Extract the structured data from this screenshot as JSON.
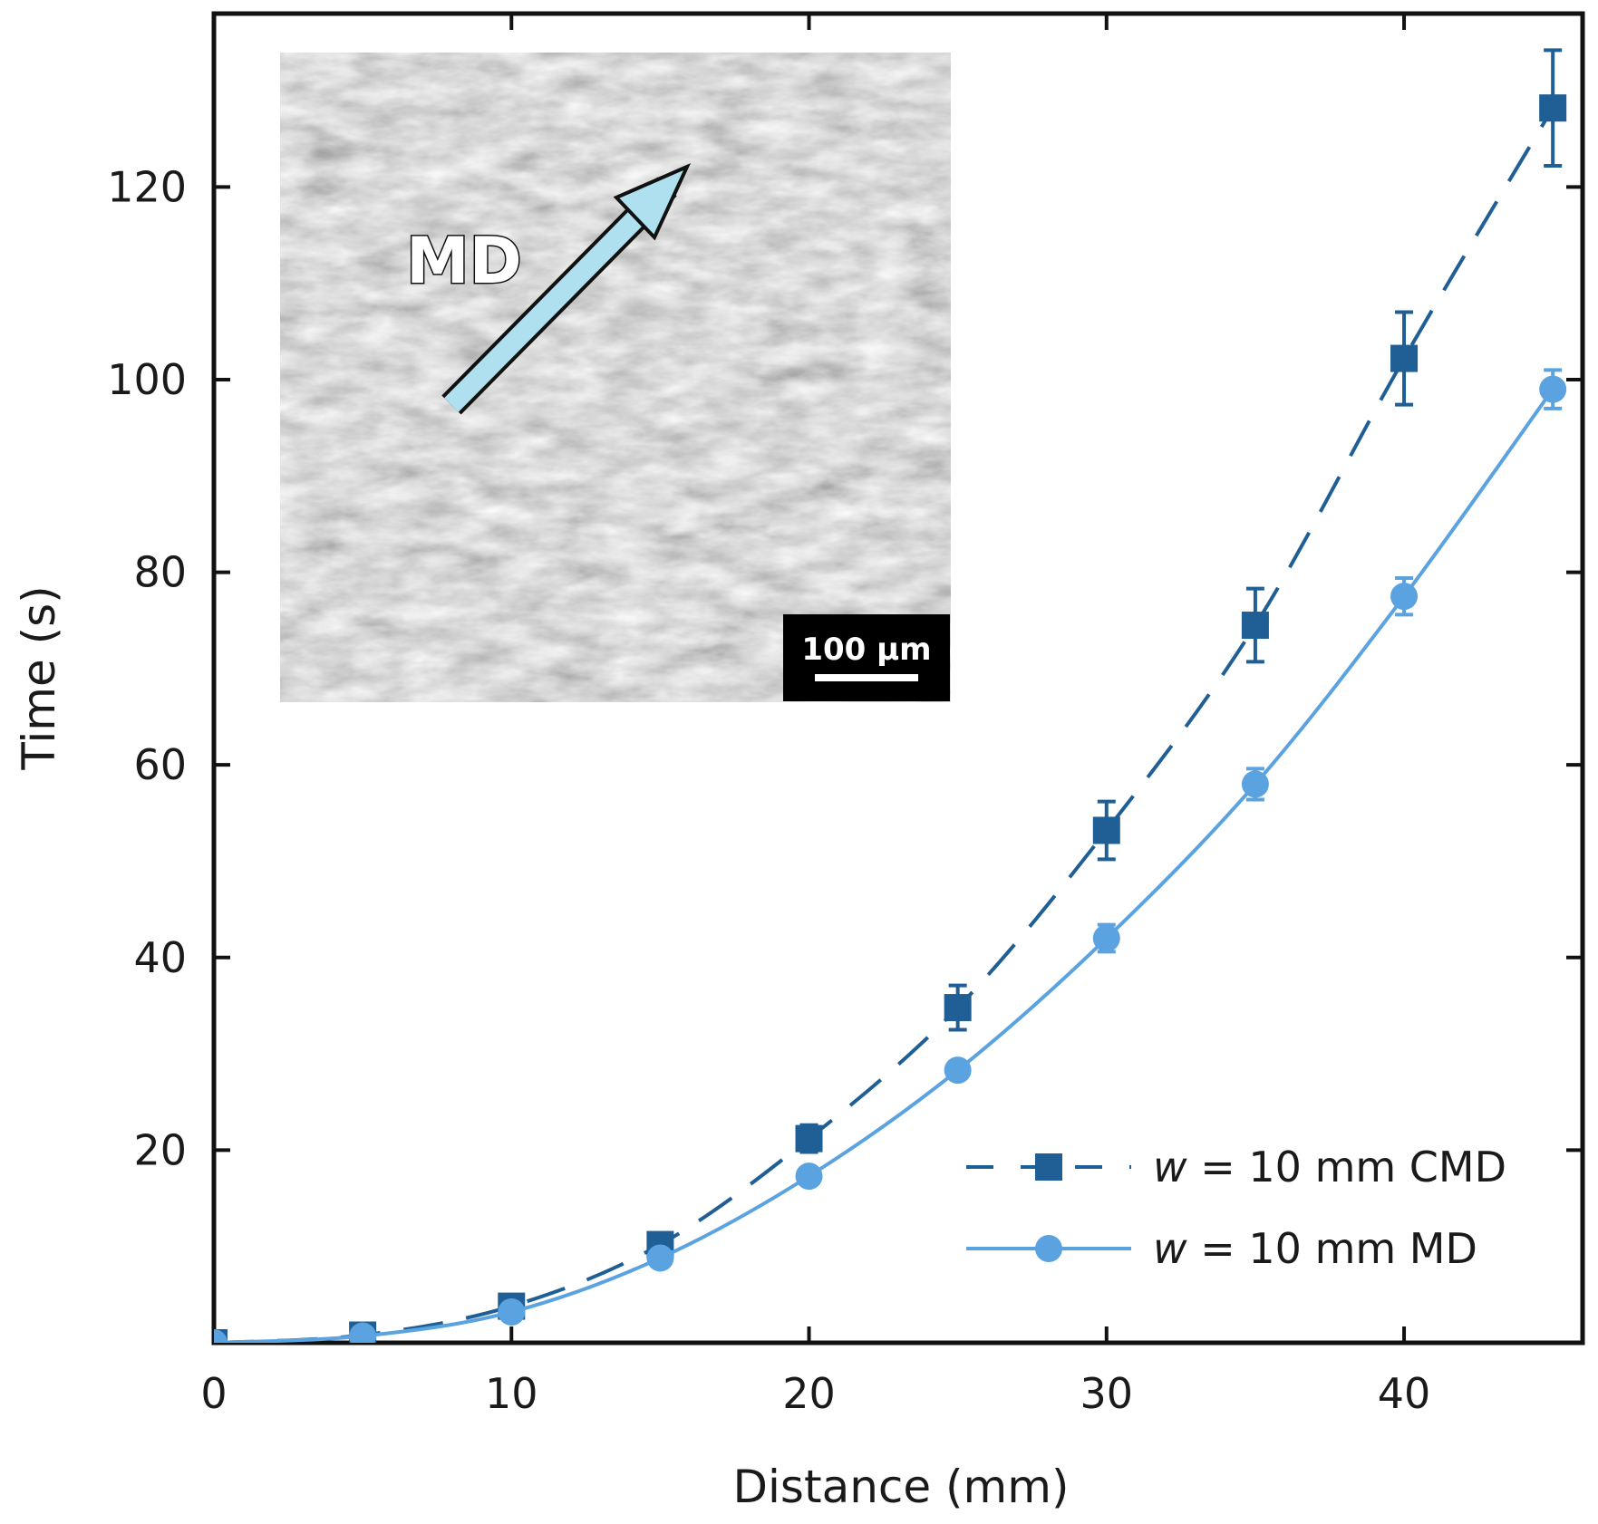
{
  "chart_data": {
    "type": "scatter",
    "title": "",
    "xlabel": "Distance (mm)",
    "ylabel": "Time (s)",
    "xlim": [
      0,
      46
    ],
    "ylim": [
      0,
      138
    ],
    "xticks": [
      0,
      10,
      20,
      30,
      40
    ],
    "yticks": [
      20,
      40,
      60,
      80,
      100,
      120
    ],
    "grid": false,
    "legend_position": "bottom-right",
    "series": [
      {
        "name": "w = 10 mm CMD",
        "legend_var": "w",
        "legend_rest": " = 10 mm CMD",
        "marker": "square",
        "line": "dashed",
        "color": "#1f5f96",
        "x": [
          0,
          5,
          10,
          15,
          20,
          25,
          30,
          35,
          40,
          45
        ],
        "y": [
          0,
          0.8,
          3.8,
          10.2,
          21.2,
          34.8,
          53.2,
          74.5,
          102.2,
          128.2
        ],
        "err": [
          0.3,
          0.5,
          0.8,
          1.0,
          1.4,
          2.3,
          3.0,
          3.8,
          4.8,
          6.0
        ]
      },
      {
        "name": "w = 10 mm MD",
        "legend_var": "w",
        "legend_rest": " = 10 mm MD",
        "marker": "circle",
        "line": "solid",
        "color": "#5ba3e0",
        "x": [
          0,
          5,
          10,
          15,
          20,
          25,
          30,
          35,
          40,
          45
        ],
        "y": [
          0,
          0.7,
          3.2,
          8.8,
          17.3,
          28.3,
          42.0,
          58.0,
          77.5,
          99.0
        ],
        "err": [
          0.3,
          0.4,
          0.6,
          0.8,
          1.0,
          1.2,
          1.4,
          1.6,
          1.9,
          2.0
        ]
      }
    ],
    "inset": {
      "label": "MD",
      "scale_bar": "100 µm"
    }
  },
  "colors": {
    "cmd": "#1f5f96",
    "md": "#5ba3e0",
    "arrow": "#aee0f0"
  }
}
